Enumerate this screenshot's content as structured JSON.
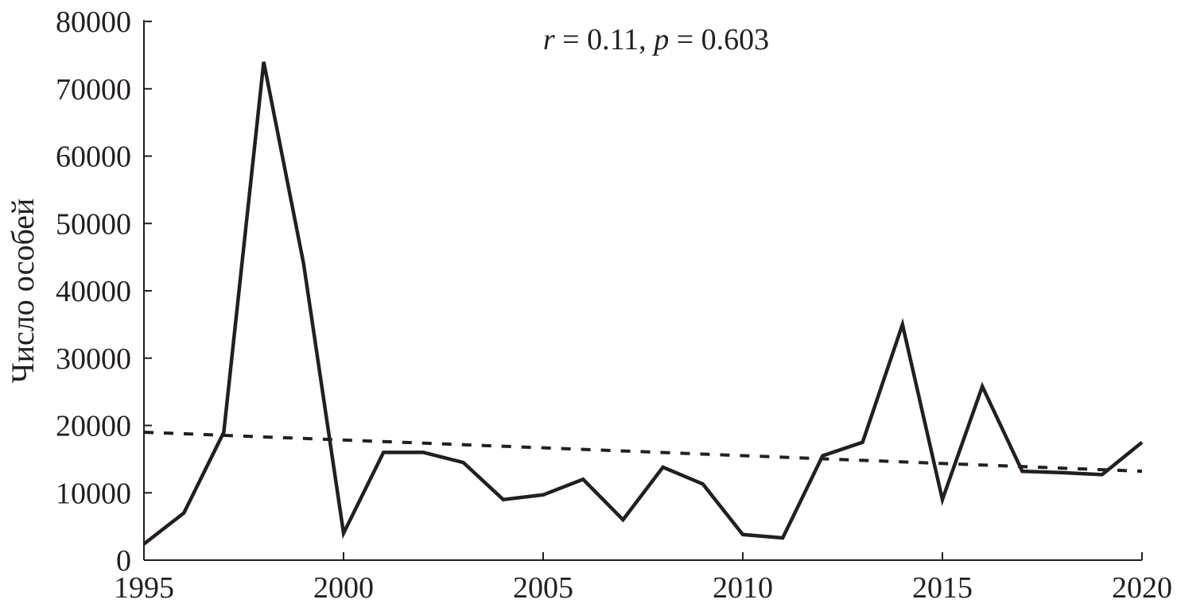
{
  "chart_data": {
    "type": "line",
    "title": "",
    "annotation": {
      "r_label": "r",
      "r_value": " = 0.11, ",
      "p_label": "p",
      "p_value": " = 0.603"
    },
    "xlabel": "",
    "ylabel": "Число особей",
    "xlim": [
      1995,
      2020
    ],
    "ylim": [
      0,
      80000
    ],
    "xticks": [
      1995,
      2000,
      2005,
      2010,
      2015,
      2020
    ],
    "yticks": [
      0,
      10000,
      20000,
      30000,
      40000,
      50000,
      60000,
      70000,
      80000
    ],
    "grid": false,
    "series": [
      {
        "style": "solid",
        "color": "#231f20",
        "x": [
          1995,
          1996,
          1997,
          1998,
          1999,
          2000,
          2001,
          2002,
          2003,
          2004,
          2005,
          2006,
          2007,
          2008,
          2009,
          2010,
          2011,
          2012,
          2013,
          2014,
          2015,
          2016,
          2017,
          2018,
          2019,
          2020
        ],
        "y": [
          2400,
          7000,
          19000,
          74000,
          44000,
          4000,
          16000,
          16000,
          14500,
          9000,
          9700,
          12000,
          6000,
          13800,
          11300,
          3800,
          3300,
          15500,
          17500,
          35000,
          9000,
          25800,
          13200,
          13000,
          12700,
          17500
        ]
      },
      {
        "style": "dashed",
        "color": "#231f20",
        "x": [
          1995,
          2020
        ],
        "y": [
          19000,
          13200
        ]
      }
    ]
  }
}
